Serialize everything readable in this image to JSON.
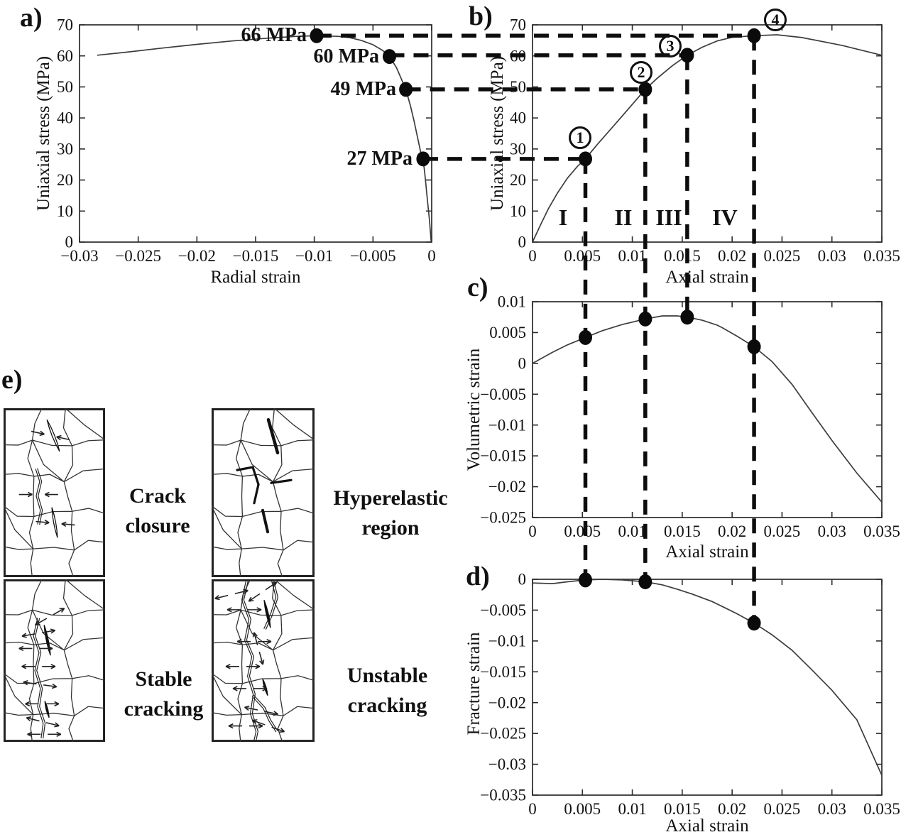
{
  "panels": {
    "a": {
      "label": "a)"
    },
    "b": {
      "label": "b)"
    },
    "c": {
      "label": "c)"
    },
    "d": {
      "label": "d)"
    },
    "e": {
      "label": "e)",
      "captions": [
        "Crack\nclosure",
        "Hyperelastic\nregion",
        "Stable\ncracking",
        "Unstable\ncracking"
      ]
    }
  },
  "annotations": {
    "stress_labels": [
      "66 MPa",
      "60 MPa",
      "49 MPa",
      "27 MPa"
    ],
    "stage_numbers": [
      "1",
      "2",
      "3",
      "4"
    ],
    "stage_regions": [
      "I",
      "II",
      "III",
      "IV"
    ]
  },
  "chart_data": [
    {
      "id": "a",
      "type": "line",
      "title": "",
      "xlabel": "Radial strain",
      "ylabel": "Uniaxial stress (MPa)",
      "xlim": [
        -0.03,
        0
      ],
      "ylim": [
        0,
        70
      ],
      "xticks": [
        -0.03,
        -0.025,
        -0.02,
        -0.015,
        -0.01,
        -0.005,
        0
      ],
      "yticks": [
        0,
        10,
        20,
        30,
        40,
        50,
        60,
        70
      ],
      "grid": false,
      "series": [
        [
          -0.0285,
          60.2
        ],
        [
          -0.026,
          61.2
        ],
        [
          -0.023,
          62.5
        ],
        [
          -0.02,
          63.7
        ],
        [
          -0.017,
          64.8
        ],
        [
          -0.014,
          65.7
        ],
        [
          -0.0115,
          66.3
        ],
        [
          -0.0098,
          66.5
        ],
        [
          -0.008,
          66.3
        ],
        [
          -0.007,
          65.9
        ],
        [
          -0.006,
          65
        ],
        [
          -0.005,
          63.6
        ],
        [
          -0.0042,
          61.8
        ],
        [
          -0.0036,
          59.8
        ],
        [
          -0.003,
          56.2
        ],
        [
          -0.0026,
          52.7
        ],
        [
          -0.0022,
          49.2
        ],
        [
          -0.0018,
          43.8
        ],
        [
          -0.0015,
          39
        ],
        [
          -0.0012,
          33.6
        ],
        [
          -0.00095,
          29.2
        ],
        [
          -0.00073,
          26.8
        ],
        [
          -0.0006,
          22.5
        ],
        [
          -0.00048,
          18
        ],
        [
          -0.00035,
          13
        ],
        [
          -0.0002,
          7.5
        ],
        [
          -0.0001,
          3
        ],
        [
          -5e-05,
          0.3
        ]
      ],
      "points": [
        {
          "x": -0.0098,
          "y": 66.5,
          "label": "66 MPa"
        },
        {
          "x": -0.0036,
          "y": 59.8,
          "label": "60 MPa"
        },
        {
          "x": -0.0022,
          "y": 49.2,
          "label": "49 MPa"
        },
        {
          "x": -0.00073,
          "y": 26.8,
          "label": "27 MPa"
        }
      ]
    },
    {
      "id": "b",
      "type": "line",
      "title": "",
      "xlabel": "Axial strain",
      "ylabel": "Uniaxial stress (MPa)",
      "xlim": [
        0,
        0.035
      ],
      "ylim": [
        0,
        70
      ],
      "xticks": [
        0,
        0.005,
        0.01,
        0.015,
        0.02,
        0.025,
        0.03,
        0.035
      ],
      "yticks": [
        0,
        10,
        20,
        30,
        40,
        50,
        60,
        70
      ],
      "grid": false,
      "series": [
        [
          0,
          0
        ],
        [
          0.0008,
          5.5
        ],
        [
          0.0016,
          10.8
        ],
        [
          0.0025,
          15.8
        ],
        [
          0.0035,
          20.6
        ],
        [
          0.0045,
          24.4
        ],
        [
          0.0053,
          26.8
        ],
        [
          0.0065,
          31.5
        ],
        [
          0.008,
          37
        ],
        [
          0.0095,
          42.5
        ],
        [
          0.0113,
          49.2
        ],
        [
          0.0125,
          52.8
        ],
        [
          0.014,
          56.8
        ],
        [
          0.0155,
          60.2
        ],
        [
          0.017,
          62.8
        ],
        [
          0.0185,
          64.8
        ],
        [
          0.02,
          66
        ],
        [
          0.0222,
          66.5
        ],
        [
          0.0245,
          66.8
        ],
        [
          0.027,
          65.9
        ],
        [
          0.031,
          63.4
        ],
        [
          0.035,
          60.2
        ]
      ],
      "points": [
        {
          "x": 0.0053,
          "y": 26.8,
          "label": "1"
        },
        {
          "x": 0.0113,
          "y": 49.2,
          "label": "2"
        },
        {
          "x": 0.0155,
          "y": 60.2,
          "label": "3"
        },
        {
          "x": 0.0222,
          "y": 66.5,
          "label": "4"
        }
      ]
    },
    {
      "id": "c",
      "type": "line",
      "title": "",
      "xlabel": "Axial strain",
      "ylabel": "Volumetric strain",
      "xlim": [
        0,
        0.035
      ],
      "ylim": [
        -0.025,
        0.01
      ],
      "xticks": [
        0,
        0.005,
        0.01,
        0.015,
        0.02,
        0.025,
        0.03,
        0.035
      ],
      "yticks": [
        0.01,
        0.005,
        0,
        -0.005,
        -0.01,
        -0.015,
        -0.02,
        -0.025
      ],
      "grid": false,
      "series": [
        [
          0,
          0
        ],
        [
          0.002,
          0.0018
        ],
        [
          0.0035,
          0.003
        ],
        [
          0.0053,
          0.0042
        ],
        [
          0.007,
          0.0053
        ],
        [
          0.009,
          0.0063
        ],
        [
          0.0113,
          0.0072
        ],
        [
          0.013,
          0.0077
        ],
        [
          0.0145,
          0.0077
        ],
        [
          0.0155,
          0.0075
        ],
        [
          0.017,
          0.007
        ],
        [
          0.0185,
          0.0062
        ],
        [
          0.019,
          0.0058
        ],
        [
          0.0205,
          0.0044
        ],
        [
          0.0222,
          0.0027
        ],
        [
          0.024,
          0.0003
        ],
        [
          0.026,
          -0.0034
        ],
        [
          0.028,
          -0.008
        ],
        [
          0.03,
          -0.0125
        ],
        [
          0.0325,
          -0.0178
        ],
        [
          0.035,
          -0.0225
        ]
      ],
      "points": [
        {
          "x": 0.0053,
          "y": 0.0042,
          "label": "1"
        },
        {
          "x": 0.0113,
          "y": 0.0072,
          "label": "2"
        },
        {
          "x": 0.0155,
          "y": 0.0075,
          "label": "3"
        },
        {
          "x": 0.0222,
          "y": 0.0027,
          "label": "4"
        }
      ]
    },
    {
      "id": "d",
      "type": "line",
      "title": "",
      "xlabel": "Axial strain",
      "ylabel": "Fracture strain",
      "xlim": [
        0,
        0.035
      ],
      "ylim": [
        -0.035,
        0
      ],
      "xticks": [
        0,
        0.005,
        0.01,
        0.015,
        0.02,
        0.025,
        0.03,
        0.035
      ],
      "yticks": [
        0,
        -0.005,
        -0.01,
        -0.015,
        -0.02,
        -0.025,
        -0.03,
        -0.035
      ],
      "grid": false,
      "series": [
        [
          0,
          -0.0006
        ],
        [
          0.002,
          -0.0007
        ],
        [
          0.0035,
          -0.0004
        ],
        [
          0.0053,
          -0.0001
        ],
        [
          0.007,
          0
        ],
        [
          0.009,
          -0.0001
        ],
        [
          0.0113,
          -0.0004
        ],
        [
          0.013,
          -0.0009
        ],
        [
          0.0145,
          -0.0016
        ],
        [
          0.016,
          -0.0024
        ],
        [
          0.018,
          -0.0036
        ],
        [
          0.019,
          -0.0044
        ],
        [
          0.0205,
          -0.0056
        ],
        [
          0.0222,
          -0.0071
        ],
        [
          0.024,
          -0.009
        ],
        [
          0.026,
          -0.0115
        ],
        [
          0.028,
          -0.0147
        ],
        [
          0.03,
          -0.018
        ],
        [
          0.0325,
          -0.0228
        ],
        [
          0.035,
          -0.0318
        ]
      ],
      "points": [
        {
          "x": 0.0053,
          "y": -0.0001,
          "label": "1"
        },
        {
          "x": 0.0113,
          "y": -0.0004,
          "label": "2"
        },
        {
          "x": 0.0222,
          "y": -0.0071,
          "label": "4"
        }
      ]
    }
  ],
  "links": [
    {
      "stage": "1",
      "stress": 26.8,
      "radial": -0.00073,
      "axial": 0.0053,
      "ends": "d",
      "end_value": -0.0001
    },
    {
      "stage": "2",
      "stress": 49.2,
      "radial": -0.0022,
      "axial": 0.0113,
      "ends": "d",
      "end_value": -0.0004
    },
    {
      "stage": "3",
      "stress": 60.2,
      "radial": -0.0036,
      "axial": 0.0155,
      "ends": "c",
      "end_value": 0.0075
    },
    {
      "stage": "4",
      "stress": 66.5,
      "radial": -0.0098,
      "axial": 0.0222,
      "ends": "d",
      "end_value": -0.0071
    }
  ]
}
